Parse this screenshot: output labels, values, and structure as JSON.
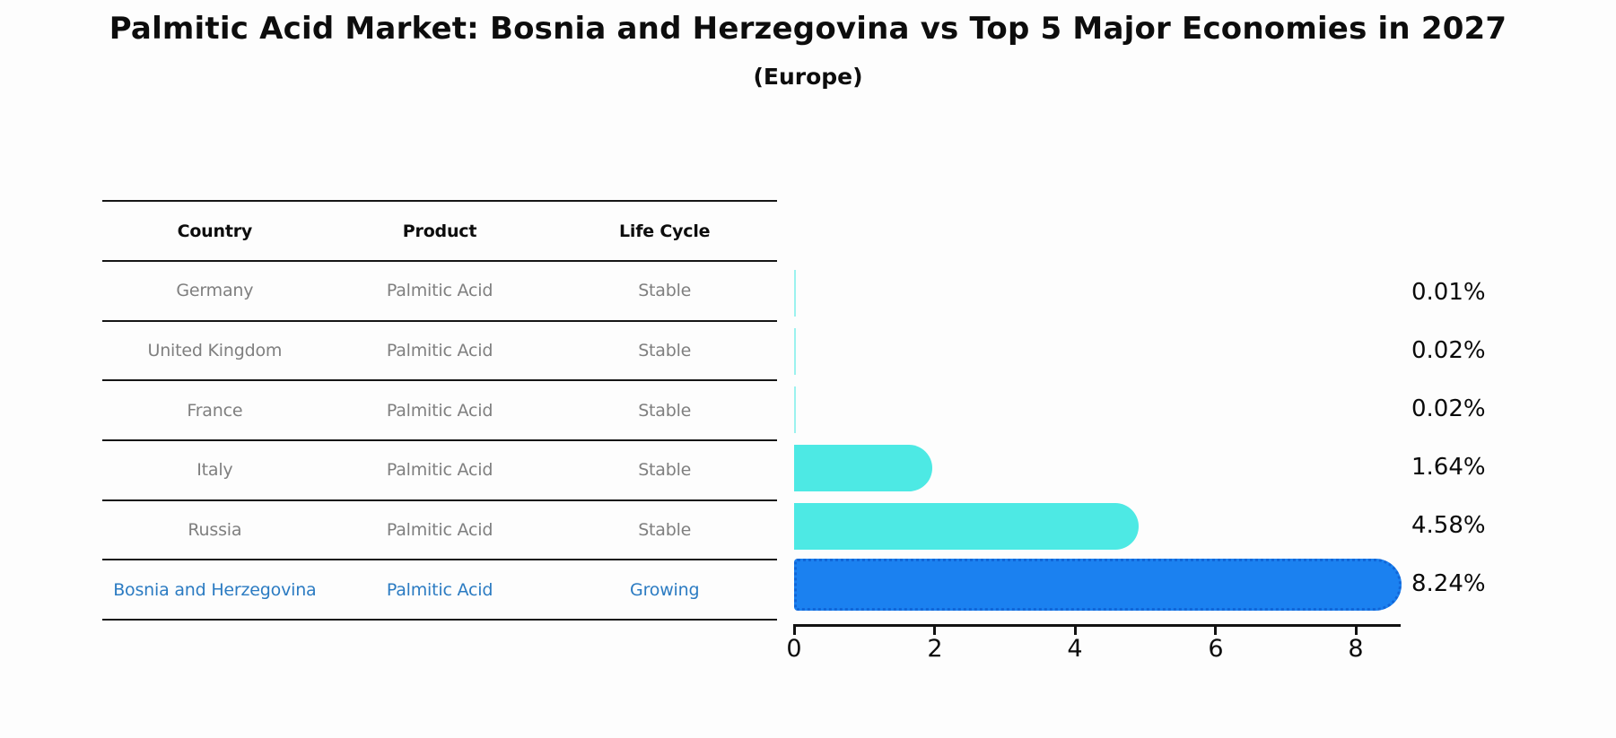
{
  "title": "Palmitic Acid Market: Bosnia and Herzegovina vs Top 5 Major Economies in 2027",
  "subtitle": "(Europe)",
  "table": {
    "columns": [
      "Country",
      "Product",
      "Life Cycle"
    ],
    "rows": [
      {
        "country": "Germany",
        "product": "Palmitic Acid",
        "life_cycle": "Stable",
        "highlight": false
      },
      {
        "country": "United Kingdom",
        "product": "Palmitic Acid",
        "life_cycle": "Stable",
        "highlight": false
      },
      {
        "country": "France",
        "product": "Palmitic Acid",
        "life_cycle": "Stable",
        "highlight": false
      },
      {
        "country": "Italy",
        "product": "Palmitic Acid",
        "life_cycle": "Stable",
        "highlight": false
      },
      {
        "country": "Russia",
        "product": "Palmitic Acid",
        "life_cycle": "Stable",
        "highlight": false
      },
      {
        "country": "Bosnia and Herzegovina",
        "product": "Palmitic Acid",
        "life_cycle": "Growing",
        "highlight": true
      }
    ]
  },
  "chart_data": {
    "type": "bar",
    "orientation": "horizontal",
    "categories": [
      "Germany",
      "United Kingdom",
      "France",
      "Italy",
      "Russia",
      "Bosnia and Herzegovina"
    ],
    "values": [
      0.01,
      0.02,
      0.02,
      1.64,
      4.58,
      8.24
    ],
    "value_labels": [
      "0.01%",
      "0.02%",
      "0.02%",
      "1.64%",
      "4.58%",
      "8.24%"
    ],
    "highlight_index": 5,
    "x_ticks": [
      "0",
      "2",
      "4",
      "6",
      "8"
    ],
    "x_tick_values": [
      0,
      2,
      4,
      6,
      8
    ],
    "xlim": [
      0,
      8.64
    ],
    "grid": false,
    "legend": "none",
    "colors": {
      "bar": "#4DE9E4",
      "highlight_bar": "#1B81F0",
      "highlight_border": "#1166D8",
      "table_text": "#7f7f7f",
      "highlight_text": "#2b7bc2",
      "axis": "#111111"
    }
  }
}
